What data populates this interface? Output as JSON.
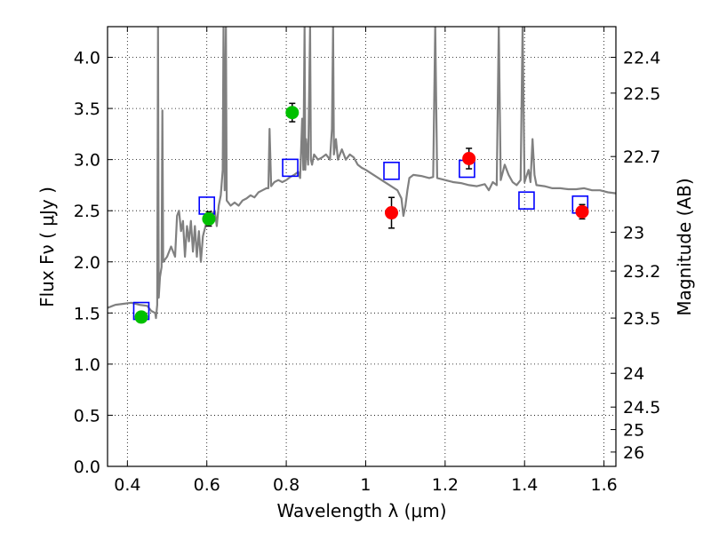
{
  "chart_data": {
    "type": "scatter",
    "xlabel": "Wavelength  λ (μm)",
    "ylabel": "Flux  Fν  ( μJy )",
    "ylabel_right": "Magnitude (AB)",
    "xlim": [
      0.35,
      1.63
    ],
    "ylim": [
      0.0,
      4.3
    ],
    "grid": true,
    "x_ticks": [
      {
        "value": 0.4,
        "label": "0.4"
      },
      {
        "value": 0.6,
        "label": "0.6"
      },
      {
        "value": 0.8,
        "label": "0.8"
      },
      {
        "value": 1.0,
        "label": "1"
      },
      {
        "value": 1.2,
        "label": "1.2"
      },
      {
        "value": 1.4,
        "label": "1.4"
      },
      {
        "value": 1.6,
        "label": "1.6"
      }
    ],
    "y_ticks": [
      {
        "value": 0.0,
        "label": "0.0"
      },
      {
        "value": 0.5,
        "label": "0.5"
      },
      {
        "value": 1.0,
        "label": "1.0"
      },
      {
        "value": 1.5,
        "label": "1.5"
      },
      {
        "value": 2.0,
        "label": "2.0"
      },
      {
        "value": 2.5,
        "label": "2.5"
      },
      {
        "value": 3.0,
        "label": "3.0"
      },
      {
        "value": 3.5,
        "label": "3.5"
      },
      {
        "value": 4.0,
        "label": "4.0"
      }
    ],
    "y_right_ticks": [
      {
        "flux": 4.0,
        "label": "22.4"
      },
      {
        "flux": 3.65,
        "label": "22.5"
      },
      {
        "flux": 3.03,
        "label": "22.7"
      },
      {
        "flux": 2.29,
        "label": "23"
      },
      {
        "flux": 1.91,
        "label": "23.2"
      },
      {
        "flux": 1.45,
        "label": "23.5"
      },
      {
        "flux": 0.91,
        "label": "24"
      },
      {
        "flux": 0.58,
        "label": "24.5"
      },
      {
        "flux": 0.36,
        "label": "25"
      },
      {
        "flux": 0.14,
        "label": "26"
      }
    ],
    "colors": {
      "spectrum": "#808080",
      "model": "#0000ff",
      "optical": "#00c000",
      "nir": "#ff0000",
      "errorbar": "#000000",
      "grid": "#000000"
    },
    "model_points": [
      {
        "x": 0.435,
        "y": 1.52
      },
      {
        "x": 0.6,
        "y": 2.55
      },
      {
        "x": 0.81,
        "y": 2.92
      },
      {
        "x": 1.065,
        "y": 2.89
      },
      {
        "x": 1.255,
        "y": 2.91
      },
      {
        "x": 1.405,
        "y": 2.6
      },
      {
        "x": 1.54,
        "y": 2.56
      }
    ],
    "observed_optical": [
      {
        "x": 0.435,
        "y": 1.46,
        "err": 0.04
      },
      {
        "x": 0.605,
        "y": 2.42,
        "err": 0.07
      },
      {
        "x": 0.815,
        "y": 3.46,
        "err": 0.09
      }
    ],
    "observed_nir": [
      {
        "x": 1.065,
        "y": 2.48,
        "err": 0.15
      },
      {
        "x": 1.26,
        "y": 3.01,
        "err": 0.1
      },
      {
        "x": 1.545,
        "y": 2.49,
        "err": 0.07
      }
    ],
    "spectrum": [
      [
        0.35,
        1.55
      ],
      [
        0.37,
        1.58
      ],
      [
        0.39,
        1.59
      ],
      [
        0.41,
        1.6
      ],
      [
        0.43,
        1.58
      ],
      [
        0.45,
        1.57
      ],
      [
        0.46,
        1.52
      ],
      [
        0.47,
        1.5
      ],
      [
        0.472,
        1.45
      ],
      [
        0.475,
        1.58
      ],
      [
        0.477,
        4.3
      ],
      [
        0.479,
        1.65
      ],
      [
        0.482,
        1.85
      ],
      [
        0.486,
        1.95
      ],
      [
        0.488,
        3.48
      ],
      [
        0.49,
        2.0
      ],
      [
        0.5,
        2.05
      ],
      [
        0.51,
        2.15
      ],
      [
        0.52,
        2.05
      ],
      [
        0.525,
        2.45
      ],
      [
        0.53,
        2.5
      ],
      [
        0.535,
        2.3
      ],
      [
        0.54,
        2.4
      ],
      [
        0.545,
        2.05
      ],
      [
        0.55,
        2.35
      ],
      [
        0.555,
        2.2
      ],
      [
        0.56,
        2.4
      ],
      [
        0.565,
        2.1
      ],
      [
        0.57,
        2.35
      ],
      [
        0.575,
        2.05
      ],
      [
        0.58,
        2.3
      ],
      [
        0.585,
        2.0
      ],
      [
        0.59,
        2.25
      ],
      [
        0.6,
        2.4
      ],
      [
        0.61,
        2.45
      ],
      [
        0.62,
        2.5
      ],
      [
        0.625,
        2.35
      ],
      [
        0.63,
        2.55
      ],
      [
        0.635,
        2.65
      ],
      [
        0.64,
        2.9
      ],
      [
        0.642,
        4.3
      ],
      [
        0.645,
        2.7
      ],
      [
        0.648,
        4.3
      ],
      [
        0.65,
        2.6
      ],
      [
        0.66,
        2.55
      ],
      [
        0.67,
        2.58
      ],
      [
        0.68,
        2.55
      ],
      [
        0.69,
        2.6
      ],
      [
        0.7,
        2.62
      ],
      [
        0.71,
        2.65
      ],
      [
        0.72,
        2.63
      ],
      [
        0.73,
        2.68
      ],
      [
        0.74,
        2.7
      ],
      [
        0.75,
        2.72
      ],
      [
        0.755,
        2.72
      ],
      [
        0.758,
        3.3
      ],
      [
        0.762,
        2.74
      ],
      [
        0.77,
        2.78
      ],
      [
        0.78,
        2.8
      ],
      [
        0.79,
        2.78
      ],
      [
        0.8,
        2.8
      ],
      [
        0.81,
        2.83
      ],
      [
        0.82,
        2.85
      ],
      [
        0.83,
        2.88
      ],
      [
        0.835,
        2.82
      ],
      [
        0.84,
        3.4
      ],
      [
        0.843,
        2.9
      ],
      [
        0.846,
        4.3
      ],
      [
        0.848,
        2.9
      ],
      [
        0.85,
        3.2
      ],
      [
        0.855,
        2.95
      ],
      [
        0.86,
        4.3
      ],
      [
        0.862,
        3.0
      ],
      [
        0.865,
        2.95
      ],
      [
        0.87,
        3.05
      ],
      [
        0.88,
        3.0
      ],
      [
        0.89,
        3.02
      ],
      [
        0.9,
        3.05
      ],
      [
        0.91,
        3.0
      ],
      [
        0.915,
        3.3
      ],
      [
        0.918,
        4.3
      ],
      [
        0.92,
        3.05
      ],
      [
        0.925,
        3.2
      ],
      [
        0.93,
        3.0
      ],
      [
        0.94,
        3.1
      ],
      [
        0.95,
        3.0
      ],
      [
        0.96,
        3.05
      ],
      [
        0.97,
        3.02
      ],
      [
        0.98,
        2.95
      ],
      [
        0.99,
        2.92
      ],
      [
        1.0,
        2.9
      ],
      [
        1.02,
        2.85
      ],
      [
        1.04,
        2.8
      ],
      [
        1.06,
        2.75
      ],
      [
        1.08,
        2.7
      ],
      [
        1.09,
        2.62
      ],
      [
        1.095,
        2.45
      ],
      [
        1.1,
        2.55
      ],
      [
        1.105,
        2.7
      ],
      [
        1.11,
        2.82
      ],
      [
        1.12,
        2.85
      ],
      [
        1.14,
        2.84
      ],
      [
        1.16,
        2.82
      ],
      [
        1.17,
        2.83
      ],
      [
        1.175,
        4.3
      ],
      [
        1.18,
        2.82
      ],
      [
        1.2,
        2.8
      ],
      [
        1.22,
        2.78
      ],
      [
        1.24,
        2.77
      ],
      [
        1.26,
        2.75
      ],
      [
        1.28,
        2.74
      ],
      [
        1.3,
        2.76
      ],
      [
        1.31,
        2.7
      ],
      [
        1.32,
        2.78
      ],
      [
        1.33,
        2.75
      ],
      [
        1.335,
        4.3
      ],
      [
        1.34,
        2.8
      ],
      [
        1.35,
        2.95
      ],
      [
        1.36,
        2.85
      ],
      [
        1.37,
        2.78
      ],
      [
        1.38,
        2.75
      ],
      [
        1.39,
        2.8
      ],
      [
        1.395,
        4.3
      ],
      [
        1.4,
        2.78
      ],
      [
        1.41,
        2.9
      ],
      [
        1.415,
        2.78
      ],
      [
        1.42,
        3.2
      ],
      [
        1.425,
        2.85
      ],
      [
        1.43,
        2.75
      ],
      [
        1.45,
        2.74
      ],
      [
        1.47,
        2.72
      ],
      [
        1.49,
        2.72
      ],
      [
        1.51,
        2.71
      ],
      [
        1.53,
        2.71
      ],
      [
        1.55,
        2.72
      ],
      [
        1.57,
        2.7
      ],
      [
        1.59,
        2.7
      ],
      [
        1.61,
        2.68
      ],
      [
        1.63,
        2.67
      ]
    ]
  }
}
